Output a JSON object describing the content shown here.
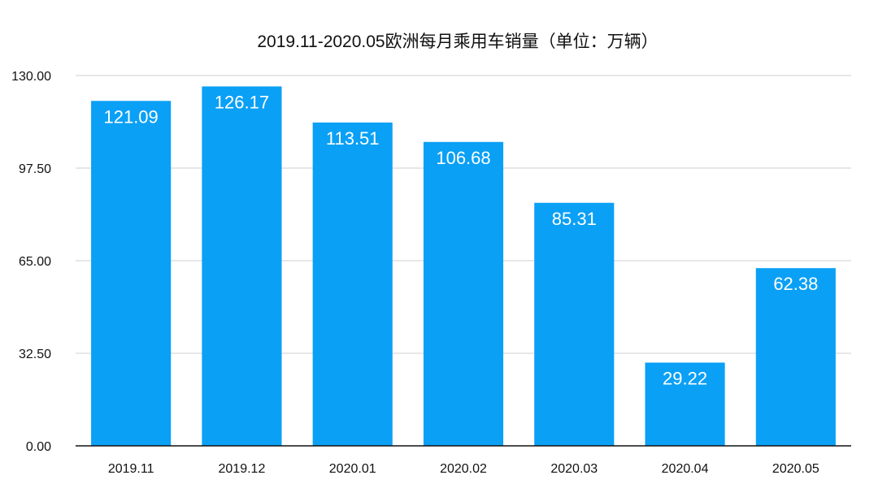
{
  "chart_data": {
    "type": "bar",
    "title": "2019.11-2020.05欧洲每月乘用车销量（单位：万辆）",
    "categories": [
      "2019.11",
      "2019.12",
      "2020.01",
      "2020.02",
      "2020.03",
      "2020.04",
      "2020.05"
    ],
    "values": [
      121.09,
      126.17,
      113.51,
      106.68,
      85.31,
      29.22,
      62.38
    ],
    "value_labels": [
      "121.09",
      "126.17",
      "113.51",
      "106.68",
      "85.31",
      "29.22",
      "62.38"
    ],
    "ylim": [
      0,
      130
    ],
    "yticks": [
      0,
      32.5,
      65,
      97.5,
      130
    ],
    "ytick_labels": [
      "0.00",
      "32.50",
      "65.00",
      "97.50",
      "130.00"
    ],
    "xlabel": "",
    "ylabel": "",
    "grid": true,
    "bar_color": "#0aa0f6"
  }
}
